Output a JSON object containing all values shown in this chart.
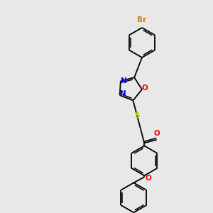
{
  "bg_color": "#e8e8e8",
  "atom_colors": {
    "Br": "#cc7722",
    "O": "#ff0000",
    "N": "#0000ff",
    "S": "#cccc00",
    "C": "#000000"
  },
  "bond_color": "#000000",
  "figsize": [
    3.0,
    3.0
  ],
  "dpi": 100,
  "bond_lw": 1.3,
  "double_sep": 2.2,
  "ring_r": 21,
  "small_ring_r": 17
}
